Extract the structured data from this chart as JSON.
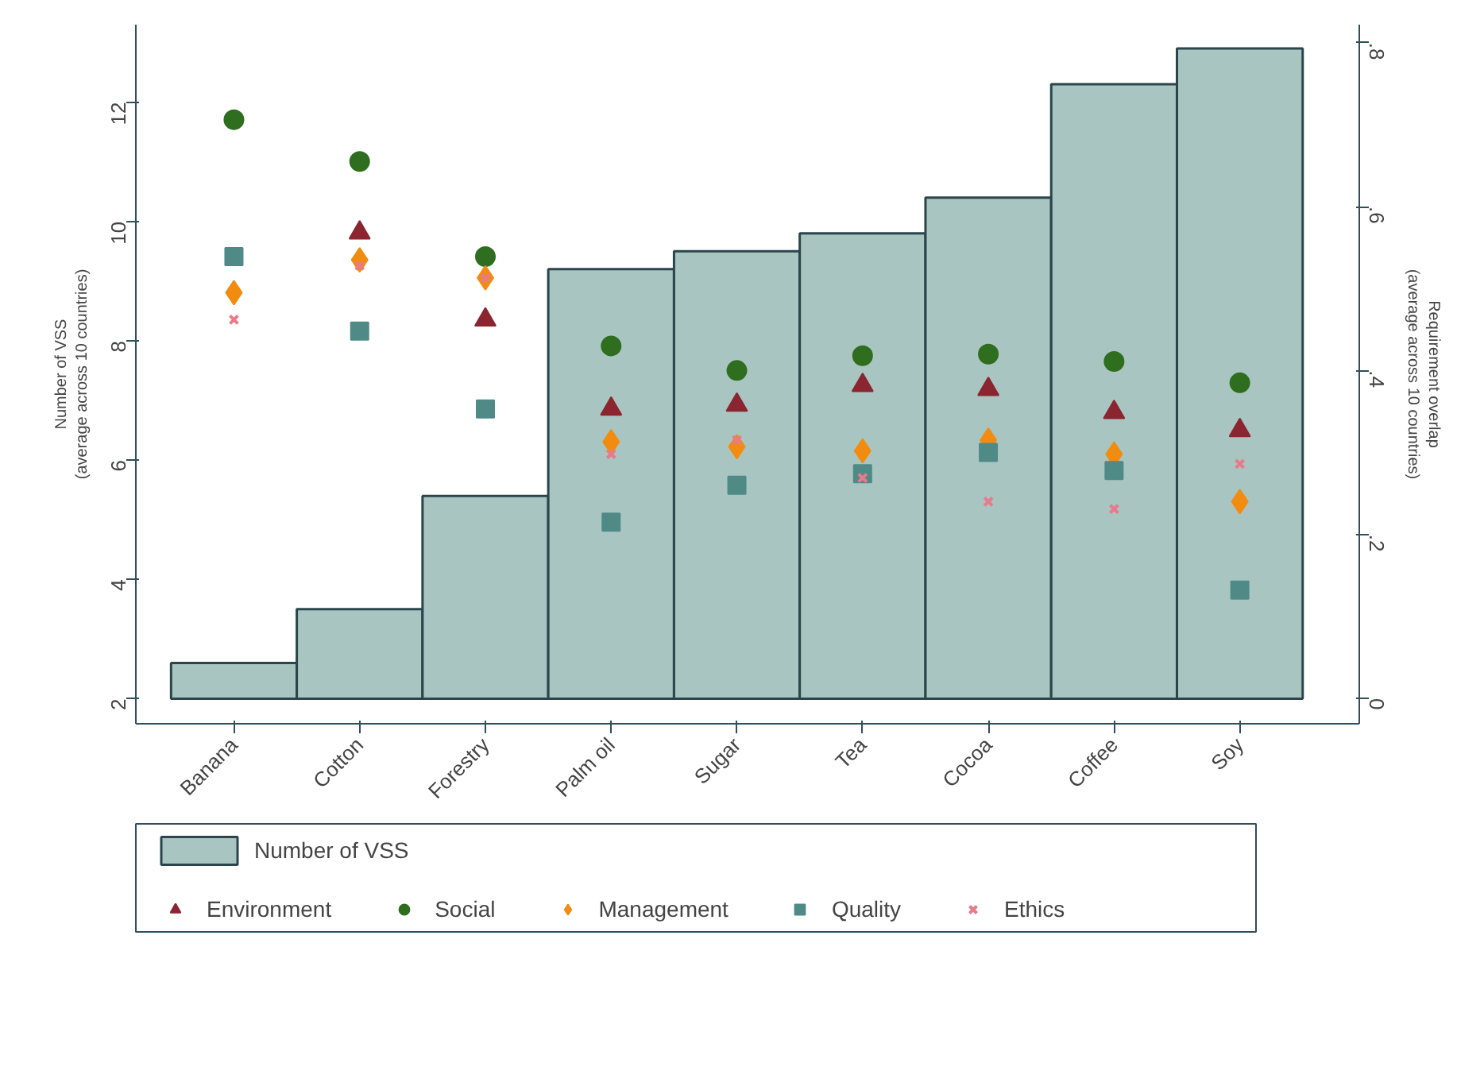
{
  "chart_data": {
    "type": "bar",
    "categories": [
      "Banana",
      "Cotton",
      "Forestry",
      "Palm oil",
      "Sugar",
      "Tea",
      "Cocoa",
      "Coffee",
      "Soy"
    ],
    "ylabel": "Number of VSS\n(average across 10 countries)",
    "y2label": "Requirement overlap\n(average across 10 countries)",
    "ylim": [
      1.58,
      13.3
    ],
    "yticks": [
      2,
      4,
      6,
      8,
      10,
      12
    ],
    "y2lim": [
      -0.031,
      0.822
    ],
    "y2ticks": [
      {
        "value": 0,
        "label": "0"
      },
      {
        "value": 0.2,
        "label": ".2"
      },
      {
        "value": 0.4,
        "label": ".4"
      },
      {
        "value": 0.6,
        "label": ".6"
      },
      {
        "value": 0.8,
        "label": ".8"
      }
    ],
    "legend": "bottom",
    "grid": false,
    "series": [
      {
        "name": "Number of VSS",
        "color": "#a9c5c1",
        "base": [
          2,
          2,
          2,
          2,
          2,
          2,
          2,
          2,
          2
        ],
        "values": [
          0.6,
          1.5,
          3.4,
          7.2,
          7.5,
          7.8,
          8.4,
          10.3,
          10.9
        ]
      },
      {
        "name": "Environment",
        "type": "scatter",
        "axis": "y2",
        "marker": "triangle",
        "color": "#8b2530",
        "values": [
          null,
          0.568,
          0.462,
          0.353,
          0.358,
          0.382,
          0.377,
          0.349,
          0.327
        ]
      },
      {
        "name": "Social",
        "type": "scatter",
        "axis": "y2",
        "marker": "circle",
        "color": "#2e6e1e",
        "values": [
          0.706,
          0.655,
          0.539,
          0.43,
          0.4,
          0.418,
          0.42,
          0.411,
          0.385
        ]
      },
      {
        "name": "Management",
        "type": "scatter",
        "axis": "y2",
        "marker": "diamond",
        "color": "#f28c10",
        "values": [
          0.495,
          0.535,
          0.513,
          0.313,
          0.307,
          0.302,
          0.315,
          0.298,
          0.24
        ]
      },
      {
        "name": "Quality",
        "type": "scatter",
        "axis": "y2",
        "marker": "square",
        "color": "#4f8a87",
        "values": [
          0.539,
          0.448,
          0.353,
          0.215,
          0.26,
          0.274,
          0.3,
          0.278,
          0.132
        ]
      },
      {
        "name": "Ethics",
        "type": "scatter",
        "axis": "y2",
        "marker": "cross",
        "color": "#e87a8a",
        "values": [
          0.462,
          0.528,
          0.513,
          0.298,
          0.315,
          0.269,
          0.24,
          0.231,
          0.286
        ]
      }
    ]
  }
}
